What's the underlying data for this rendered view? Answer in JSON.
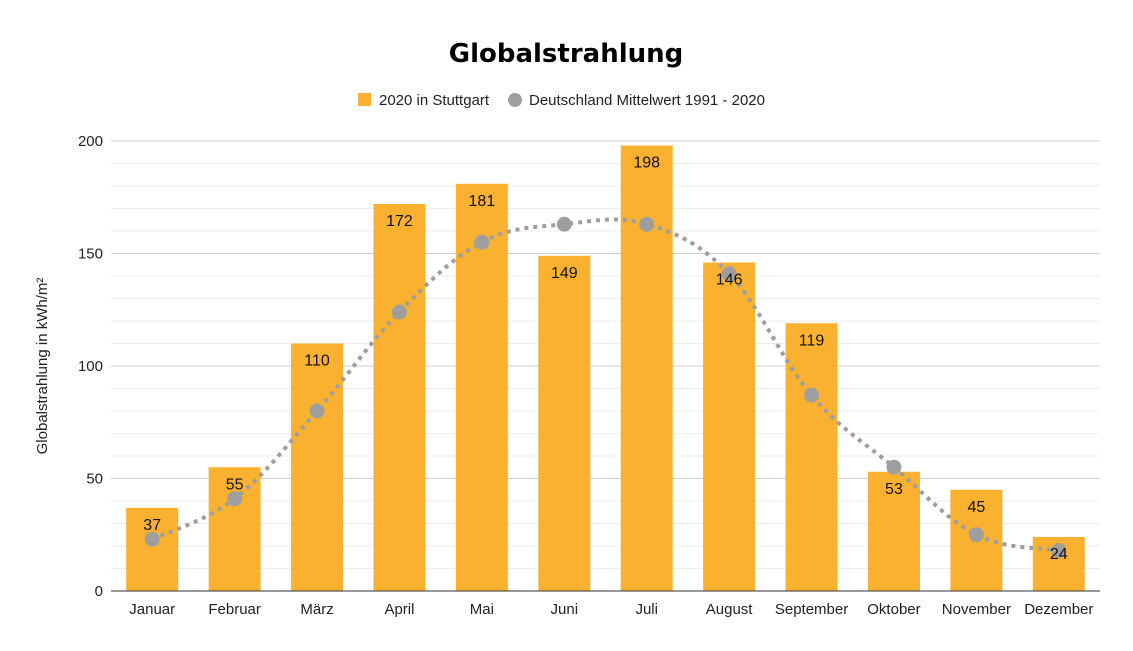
{
  "chart_data": {
    "type": "bar",
    "title": "Globalstrahlung",
    "ylabel": "Globalstrahlung in kWh/m²",
    "xlabel": "",
    "ylim": [
      0,
      200
    ],
    "yticks": [
      0,
      50,
      100,
      150,
      200
    ],
    "grid": true,
    "legend_position": "top",
    "categories": [
      "Januar",
      "Februar",
      "März",
      "April",
      "Mai",
      "Juni",
      "Juli",
      "August",
      "September",
      "Oktober",
      "November",
      "Dezember"
    ],
    "series": [
      {
        "name": "2020 in Stuttgart",
        "type": "bar",
        "color": "#FBB130",
        "values": [
          37,
          55,
          110,
          172,
          181,
          149,
          198,
          146,
          119,
          53,
          45,
          24
        ],
        "labels": [
          "37",
          "55",
          "110",
          "172",
          "181",
          "149",
          "198",
          "146",
          "119",
          "53",
          "45",
          "24"
        ]
      },
      {
        "name": "Deutschland Mittelwert 1991 - 2020",
        "type": "line",
        "style": "dotted",
        "color": "#9E9E9E",
        "values": [
          23,
          41,
          80,
          124,
          155,
          163,
          163,
          141,
          87,
          55,
          25,
          18
        ]
      }
    ]
  }
}
